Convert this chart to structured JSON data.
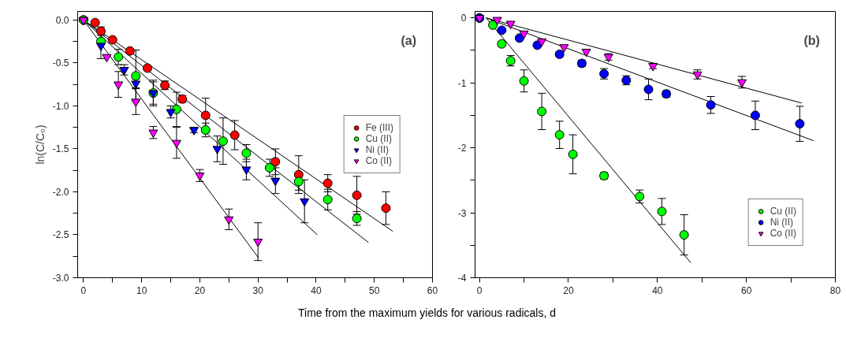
{
  "chart_data": [
    {
      "type": "scatter",
      "ylabel": "ln(C/C₀)",
      "xlabel": "Time from the maximum yields for various radicals, d",
      "annotations": [
        "(a)"
      ],
      "xlim": [
        -1,
        60
      ],
      "ylim": [
        -3,
        0.1
      ],
      "xticks": [
        0,
        {
          "value": 5,
          "label": null
        },
        10,
        {
          "value": 15,
          "label": null
        },
        20,
        {
          "value": 25,
          "label": null
        },
        30,
        {
          "value": 35,
          "label": null
        },
        40,
        {
          "value": 45,
          "label": null
        },
        50,
        {
          "value": 55,
          "label": null
        },
        60
      ],
      "yticks": [
        {
          "value": 0,
          "label": "0.0"
        },
        {
          "value": -0.25,
          "label": null
        },
        -0.5,
        {
          "value": -0.75,
          "label": null
        },
        {
          "value": -1,
          "label": "-1.0"
        },
        {
          "value": -1.25,
          "label": null
        },
        -1.5,
        {
          "value": -1.75,
          "label": null
        },
        {
          "value": -2,
          "label": "-2.0"
        },
        {
          "value": -2.25,
          "label": null
        },
        -2.5,
        {
          "value": -2.75,
          "label": null
        },
        {
          "value": -3,
          "label": "-3.0"
        }
      ],
      "legend": "right",
      "grid": false,
      "series": [
        {
          "type": "line",
          "color": "#000000",
          "x": [
            0,
            53.2
          ],
          "values": [
            0,
            -2.46
          ]
        },
        {
          "type": "line",
          "color": "#000000",
          "x": [
            0,
            49
          ],
          "values": [
            0,
            -2.59
          ]
        },
        {
          "type": "line",
          "color": "#000000",
          "x": [
            0,
            40.2
          ],
          "values": [
            0,
            -2.5
          ]
        },
        {
          "type": "line",
          "color": "#000000",
          "x": [
            0,
            30.1
          ],
          "values": [
            0,
            -2.77
          ]
        },
        {
          "name": "Fe (III)",
          "color": "#ff0000",
          "marker": "circle",
          "x": [
            0,
            2,
            3,
            5,
            8,
            11,
            14,
            17,
            21,
            26,
            33,
            37,
            42,
            47,
            52
          ],
          "values": [
            0,
            -0.03,
            -0.13,
            -0.23,
            -0.36,
            -0.56,
            -0.76,
            -0.92,
            -1.11,
            -1.34,
            -1.65,
            -1.8,
            -1.9,
            -2.04,
            -2.19
          ],
          "errors": [
            null,
            null,
            0.05,
            null,
            null,
            0.03,
            0.05,
            0.04,
            0.2,
            0.17,
            0.15,
            0.22,
            0.1,
            0.22,
            0.19
          ]
        },
        {
          "name": "Cu (II)",
          "color": "#00ff00",
          "marker": "circle",
          "x": [
            0,
            3,
            6,
            9,
            12,
            16,
            21,
            24,
            28,
            32,
            37,
            42,
            47
          ],
          "values": [
            0,
            -0.25,
            -0.43,
            -0.65,
            -0.85,
            -1.04,
            -1.28,
            -1.41,
            -1.55,
            -1.72,
            -1.88,
            -2.09,
            -2.31
          ],
          "errors": [
            null,
            0.03,
            0.09,
            0.3,
            0.15,
            0.2,
            0.08,
            0.27,
            0.1,
            0.1,
            0.1,
            0.12,
            0.08
          ]
        },
        {
          "name": "Ni (II)",
          "color": "#0000ff",
          "marker": "triangle",
          "x": [
            0,
            3,
            7,
            9,
            12,
            15,
            19,
            23,
            28,
            33,
            38
          ],
          "values": [
            0,
            -0.3,
            -0.58,
            -0.74,
            -0.85,
            -1.07,
            -1.28,
            -1.5,
            -1.74,
            -1.87,
            -2.11
          ],
          "errors": [
            null,
            0.15,
            0.06,
            0.05,
            0.13,
            0.07,
            0.03,
            0.15,
            0.12,
            0.15,
            0.25
          ]
        },
        {
          "name": "Co (II)",
          "color": "#ff00ff",
          "marker": "triangle",
          "x": [
            0,
            4,
            6,
            9,
            12,
            16,
            20,
            25,
            30
          ],
          "values": [
            0,
            -0.43,
            -0.75,
            -0.95,
            -1.31,
            -1.43,
            -1.81,
            -2.32,
            -2.58
          ],
          "errors": [
            null,
            null,
            0.15,
            0.15,
            0.07,
            0.18,
            0.07,
            0.12,
            0.22
          ]
        }
      ]
    },
    {
      "type": "scatter",
      "annotations": [
        "(b)"
      ],
      "xlim": [
        -1,
        80
      ],
      "ylim": [
        -4,
        0.1
      ],
      "xticks": [
        0,
        {
          "value": 10,
          "label": null
        },
        20,
        {
          "value": 30,
          "label": null
        },
        40,
        {
          "value": 50,
          "label": null
        },
        60,
        {
          "value": 70,
          "label": null
        },
        80
      ],
      "yticks": [
        0,
        {
          "value": -0.5,
          "label": null
        },
        -1,
        {
          "value": -1.5,
          "label": null
        },
        -2,
        {
          "value": -2.5,
          "label": null
        },
        -3,
        {
          "value": -3.5,
          "label": null
        },
        -4
      ],
      "legend": "bottom right",
      "grid": false,
      "series": [
        {
          "type": "line",
          "color": "#000000",
          "x": [
            1.5,
            47.5
          ],
          "values": [
            0,
            -3.77
          ]
        },
        {
          "type": "line",
          "color": "#000000",
          "x": [
            1.5,
            75.1
          ],
          "values": [
            0,
            -1.89
          ]
        },
        {
          "type": "line",
          "color": "#000000",
          "x": [
            1.5,
            72.4
          ],
          "values": [
            0,
            -1.31
          ]
        },
        {
          "name": "Cu (II)",
          "color": "#00ff00",
          "marker": "circle",
          "x": [
            0,
            3,
            5,
            7,
            10,
            14,
            18,
            21,
            28,
            36,
            41,
            46
          ],
          "values": [
            0,
            -0.11,
            -0.4,
            -0.66,
            -0.97,
            -1.44,
            -1.8,
            -2.1,
            -2.43,
            -2.75,
            -2.98,
            -3.34
          ],
          "errors": [
            null,
            null,
            0.04,
            0.08,
            0.17,
            0.28,
            0.21,
            0.3,
            0.05,
            0.1,
            0.2,
            0.31
          ]
        },
        {
          "name": "Ni (II)",
          "color": "#0000ff",
          "marker": "circle",
          "x": [
            0,
            5,
            9,
            13,
            18,
            23,
            28,
            33,
            38,
            42,
            52,
            62,
            72
          ],
          "values": [
            0,
            -0.19,
            -0.31,
            -0.42,
            -0.56,
            -0.7,
            -0.86,
            -0.96,
            -1.1,
            -1.17,
            -1.34,
            -1.5,
            -1.63
          ],
          "errors": [
            null,
            null,
            null,
            null,
            0.04,
            0.05,
            0.08,
            0.07,
            0.16,
            0.05,
            0.13,
            0.22,
            0.27
          ]
        },
        {
          "name": "Co (II)",
          "color": "#ff00ff",
          "marker": "triangle",
          "x": [
            0,
            4,
            7,
            10,
            14,
            19,
            24,
            29,
            39,
            49,
            59
          ],
          "values": [
            0,
            -0.03,
            -0.09,
            -0.24,
            -0.36,
            -0.45,
            -0.52,
            -0.6,
            -0.74,
            -0.87,
            -0.99
          ],
          "errors": [
            null,
            null,
            null,
            null,
            null,
            null,
            null,
            0.05,
            0.04,
            0.07,
            0.09
          ]
        }
      ]
    }
  ]
}
